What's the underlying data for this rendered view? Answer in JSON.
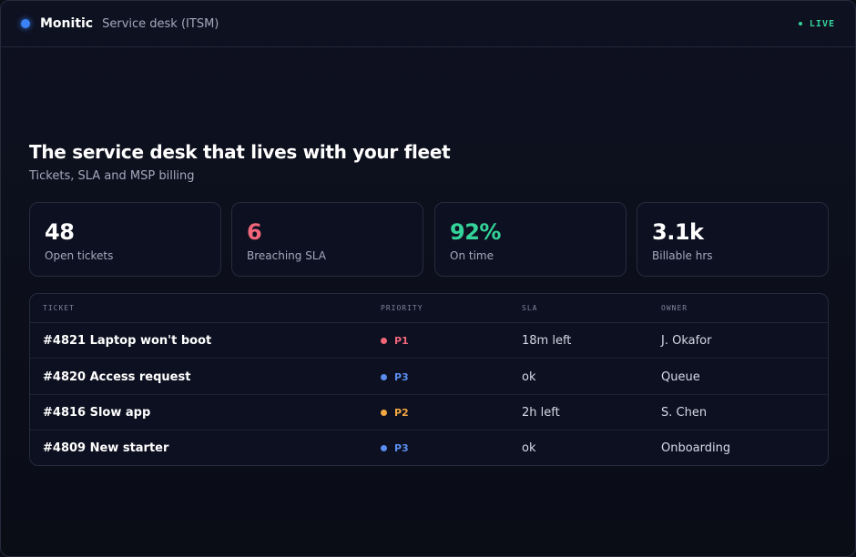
{
  "header": {
    "brand": "Monitic",
    "section": "Service desk (ITSM)",
    "status": "LIVE",
    "brand_dot_color": "#3b82f6",
    "status_color": "#34d399"
  },
  "hero": {
    "title": "The service desk that lives with your fleet",
    "subtitle": "Tickets, SLA and MSP billing"
  },
  "stats": [
    {
      "value": "48",
      "label": "Open tickets",
      "color": "#ffffff"
    },
    {
      "value": "6",
      "label": "Breaching SLA",
      "color": "#f2667a"
    },
    {
      "value": "92%",
      "label": "On time",
      "color": "#34d399"
    },
    {
      "value": "3.1k",
      "label": "Billable hrs",
      "color": "#ffffff"
    }
  ],
  "table": {
    "columns": [
      "TICKET",
      "PRIORITY",
      "SLA",
      "OWNER"
    ],
    "rows": [
      {
        "ticket": "#4821 Laptop won't boot",
        "priority": "P1",
        "priority_color": "#f2667a",
        "sla": "18m left",
        "owner": "J. Okafor"
      },
      {
        "ticket": "#4820 Access request",
        "priority": "P3",
        "priority_color": "#5b8def",
        "sla": "ok",
        "owner": "Queue"
      },
      {
        "ticket": "#4816 Slow app",
        "priority": "P2",
        "priority_color": "#f5a742",
        "sla": "2h left",
        "owner": "S. Chen"
      },
      {
        "ticket": "#4809 New starter",
        "priority": "P3",
        "priority_color": "#5b8def",
        "sla": "ok",
        "owner": "Onboarding"
      }
    ]
  }
}
